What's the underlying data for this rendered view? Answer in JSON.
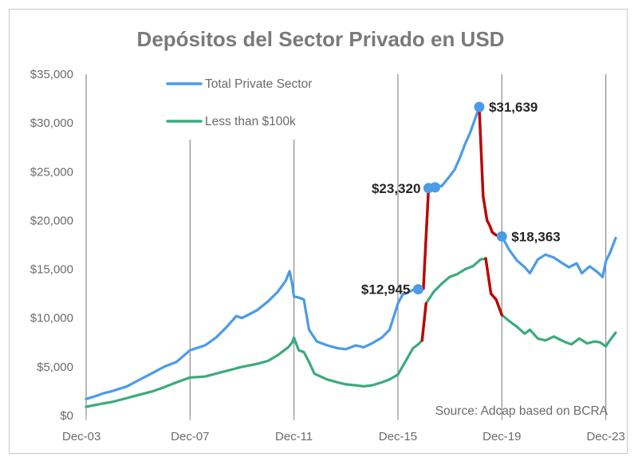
{
  "chart_data": {
    "type": "line",
    "title": "Depósitos del Sector Privado en USD",
    "xlabel": "",
    "ylabel": "",
    "ylim": [
      0,
      35000
    ],
    "y_ticks": [
      "$0",
      "$5,000",
      "$10,000",
      "$15,000",
      "$20,000",
      "$25,000",
      "$30,000",
      "$35,000"
    ],
    "y_tick_values": [
      0,
      5000,
      10000,
      15000,
      20000,
      25000,
      30000,
      35000
    ],
    "x_ticks": [
      "Dec-03",
      "Dec-07",
      "Dec-11",
      "Dec-15",
      "Dec-19",
      "Dec-23"
    ],
    "x_tick_values": [
      2003.92,
      2007.92,
      2011.92,
      2015.92,
      2019.92,
      2023.92
    ],
    "xlim": [
      2003.92,
      2024.3
    ],
    "vertical_lines": [
      2007.92,
      2011.92,
      2015.92,
      2019.92,
      2023.92
    ],
    "legend": {
      "position": "top-left",
      "entries": [
        "Total Private Sector",
        "Less than $100k"
      ]
    },
    "source": "Source: Adcap based on BCRA",
    "colors": {
      "total": "#4a9be8",
      "small": "#3aab7b",
      "highlight": "#c00000",
      "marker": "#4a9be8",
      "grid": "#8c8c8c"
    },
    "series": [
      {
        "name": "Total Private Sector",
        "x": [
          2003.92,
          2004.3,
          2004.6,
          2004.92,
          2005.5,
          2005.92,
          2006.5,
          2006.92,
          2007.4,
          2007.92,
          2008.5,
          2008.92,
          2009.3,
          2009.7,
          2009.92,
          2010.5,
          2010.92,
          2011.3,
          2011.6,
          2011.75,
          2011.85,
          2011.92,
          2012.1,
          2012.3,
          2012.5,
          2012.8,
          2013.2,
          2013.6,
          2013.92,
          2014.3,
          2014.6,
          2014.92,
          2015.3,
          2015.6,
          2015.92,
          2016.1,
          2016.3,
          2016.5,
          2016.7,
          2016.9,
          2017.1,
          2017.3,
          2017.6,
          2017.9,
          2018.1,
          2018.3,
          2018.5,
          2018.7,
          2018.9,
          2019.05,
          2019.2,
          2019.35,
          2019.45,
          2019.55,
          2019.7,
          2019.92,
          2020.2,
          2020.5,
          2020.8,
          2021.0,
          2021.3,
          2021.6,
          2021.92,
          2022.2,
          2022.5,
          2022.8,
          2023.0,
          2023.3,
          2023.6,
          2023.8,
          2023.92,
          2024.1,
          2024.3
        ],
        "values": [
          1700,
          2000,
          2300,
          2500,
          3000,
          3600,
          4400,
          5000,
          5500,
          6700,
          7200,
          8000,
          9000,
          10200,
          10000,
          10800,
          11700,
          12700,
          13800,
          14800,
          13500,
          12200,
          12100,
          11900,
          8800,
          7600,
          7200,
          6900,
          6800,
          7200,
          7000,
          7400,
          8000,
          8800,
          11500,
          12400,
          12600,
          12900,
          12945,
          13000,
          23320,
          23700,
          23500,
          24500,
          25200,
          26400,
          27800,
          29000,
          30500,
          31639,
          22500,
          20000,
          19500,
          18800,
          18500,
          18363,
          17000,
          15900,
          15200,
          14600,
          16000,
          16500,
          16200,
          15700,
          15200,
          15600,
          14600,
          15300,
          14700,
          14200,
          15800,
          16800,
          18200
        ]
      },
      {
        "name": "Less than $100k",
        "x": [
          2003.92,
          2004.5,
          2004.92,
          2005.5,
          2005.92,
          2006.5,
          2006.92,
          2007.4,
          2007.92,
          2008.5,
          2008.92,
          2009.5,
          2009.92,
          2010.5,
          2010.92,
          2011.3,
          2011.7,
          2011.85,
          2011.92,
          2012.1,
          2012.3,
          2012.5,
          2012.7,
          2013.2,
          2013.6,
          2013.92,
          2014.3,
          2014.6,
          2014.92,
          2015.3,
          2015.6,
          2015.92,
          2016.2,
          2016.5,
          2016.7,
          2016.85,
          2017.0,
          2017.3,
          2017.6,
          2017.9,
          2018.2,
          2018.5,
          2018.8,
          2019.1,
          2019.3,
          2019.5,
          2019.7,
          2019.92,
          2020.2,
          2020.5,
          2020.8,
          2021.0,
          2021.3,
          2021.6,
          2021.92,
          2022.3,
          2022.6,
          2022.9,
          2023.2,
          2023.5,
          2023.7,
          2023.92,
          2024.1,
          2024.3
        ],
        "values": [
          900,
          1200,
          1400,
          1800,
          2100,
          2500,
          2900,
          3400,
          3900,
          4000,
          4300,
          4700,
          5000,
          5300,
          5600,
          6200,
          7000,
          7500,
          8000,
          6700,
          6500,
          5500,
          4300,
          3700,
          3400,
          3200,
          3100,
          3000,
          3100,
          3400,
          3700,
          4200,
          5500,
          6900,
          7300,
          7700,
          11500,
          12700,
          13500,
          14200,
          14500,
          15000,
          15300,
          16000,
          16100,
          12500,
          11900,
          10300,
          9700,
          9100,
          8400,
          8800,
          7900,
          7700,
          8100,
          7600,
          7300,
          7900,
          7400,
          7600,
          7500,
          7100,
          7800,
          8500
        ]
      }
    ],
    "highlight_segments": [
      {
        "series": "Total Private Sector",
        "from": 2016.9,
        "to": 2017.1,
        "color": "red"
      },
      {
        "series": "Total Private Sector",
        "from": 2019.05,
        "to": 2019.92,
        "color": "red"
      },
      {
        "series": "Less than $100k",
        "from": 2016.85,
        "to": 2017.0,
        "color": "red"
      },
      {
        "series": "Less than $100k",
        "from": 2019.3,
        "to": 2019.92,
        "color": "red"
      }
    ],
    "annotations": [
      {
        "label": "$12,945",
        "x": 2016.7,
        "y": 12945,
        "anchor": "end"
      },
      {
        "label": "$23,320",
        "x": 2017.1,
        "y": 23320,
        "anchor": "end"
      },
      {
        "label": "$31,639",
        "x": 2019.05,
        "y": 31639,
        "anchor": "start"
      },
      {
        "label": "$18,363",
        "x": 2019.92,
        "y": 18363,
        "anchor": "start"
      }
    ],
    "markers": [
      {
        "x": 2016.7,
        "y": 12945
      },
      {
        "x": 2017.1,
        "y": 23320
      },
      {
        "x": 2017.35,
        "y": 23400
      },
      {
        "x": 2019.05,
        "y": 31639
      },
      {
        "x": 2019.92,
        "y": 18363
      }
    ]
  }
}
